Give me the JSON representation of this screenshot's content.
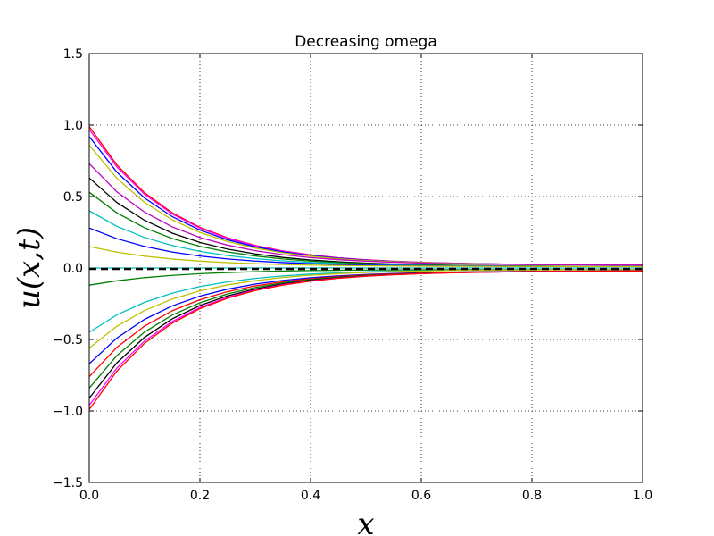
{
  "chart_data": {
    "type": "line",
    "title": "Decreasing omega",
    "xlabel": "x",
    "ylabel": "u(x,t)",
    "xlim": [
      0.0,
      1.0
    ],
    "ylim": [
      -1.5,
      1.5
    ],
    "xticks": [
      "0.0",
      "0.2",
      "0.4",
      "0.6",
      "0.8",
      "1.0"
    ],
    "yticks": [
      "1.5",
      "1.0",
      "0.5",
      "0.0",
      "−0.5",
      "−1.0",
      "−1.5"
    ],
    "grid": true,
    "grid_style": "dotted",
    "decay_rate": 6.5,
    "x": [
      0.0,
      0.05,
      0.1,
      0.15,
      0.2,
      0.25,
      0.3,
      0.35,
      0.4,
      0.45,
      0.5,
      0.55,
      0.6,
      0.65,
      0.7,
      0.75,
      0.8,
      0.85,
      0.9,
      0.95,
      1.0
    ],
    "series": [
      {
        "color": "#ff0000",
        "u0": 0.99,
        "offset": 0.02
      },
      {
        "color": "#ff00ff",
        "u0": 0.97,
        "offset": 0.02
      },
      {
        "color": "#0000ff",
        "u0": 0.92,
        "offset": 0.02
      },
      {
        "color": "#bfbf00",
        "u0": 0.86,
        "offset": 0.02
      },
      {
        "color": "#bf00bf",
        "u0": 0.73,
        "offset": 0.02
      },
      {
        "color": "#000000",
        "u0": 0.63,
        "offset": 0.01
      },
      {
        "color": "#007f00",
        "u0": 0.53,
        "offset": 0.01
      },
      {
        "color": "#00bfbf",
        "u0": 0.4,
        "offset": 0.01
      },
      {
        "color": "#0000ff",
        "u0": 0.28,
        "offset": 0.01
      },
      {
        "color": "#bfbf00",
        "u0": 0.15,
        "offset": 0.01
      },
      {
        "color": "#007f00",
        "u0": -0.12,
        "offset": -0.01
      },
      {
        "color": "#00bfbf",
        "u0": -0.45,
        "offset": -0.01
      },
      {
        "color": "#bfbf00",
        "u0": -0.56,
        "offset": -0.01
      },
      {
        "color": "#0000ff",
        "u0": -0.67,
        "offset": -0.02
      },
      {
        "color": "#ff0000",
        "u0": -0.76,
        "offset": -0.02
      },
      {
        "color": "#007f00",
        "u0": -0.84,
        "offset": -0.02
      },
      {
        "color": "#000000",
        "u0": -0.91,
        "offset": -0.02
      },
      {
        "color": "#ff00ff",
        "u0": -0.96,
        "offset": -0.02
      },
      {
        "color": "#ff0000",
        "u0": -0.99,
        "offset": -0.02
      }
    ],
    "baseline": {
      "color": "#000000",
      "y": 0.0,
      "style": "dashed"
    },
    "baseline_secondary": {
      "color": "#00bfbf",
      "y": 0.0
    }
  }
}
